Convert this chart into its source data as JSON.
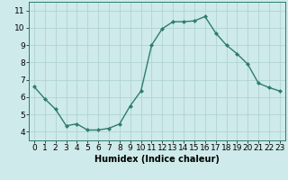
{
  "x": [
    0,
    1,
    2,
    3,
    4,
    5,
    6,
    7,
    8,
    9,
    10,
    11,
    12,
    13,
    14,
    15,
    16,
    17,
    18,
    19,
    20,
    21,
    22,
    23
  ],
  "y": [
    6.6,
    5.9,
    5.3,
    4.35,
    4.45,
    4.1,
    4.1,
    4.2,
    4.45,
    5.5,
    6.35,
    9.0,
    9.95,
    10.35,
    10.35,
    10.4,
    10.65,
    9.7,
    9.0,
    8.5,
    7.9,
    6.8,
    6.55,
    6.35
  ],
  "line_color": "#2e7d6e",
  "marker": "D",
  "marker_size": 2,
  "bg_color": "#ceeaea",
  "grid_color": "#b0d4d4",
  "xlabel": "Humidex (Indice chaleur)",
  "xlim": [
    -0.5,
    23.5
  ],
  "ylim": [
    3.5,
    11.5
  ],
  "yticks": [
    4,
    5,
    6,
    7,
    8,
    9,
    10,
    11
  ],
  "xticks": [
    0,
    1,
    2,
    3,
    4,
    5,
    6,
    7,
    8,
    9,
    10,
    11,
    12,
    13,
    14,
    15,
    16,
    17,
    18,
    19,
    20,
    21,
    22,
    23
  ],
  "xlabel_fontsize": 7,
  "tick_fontsize": 6.5,
  "line_width": 1.0
}
